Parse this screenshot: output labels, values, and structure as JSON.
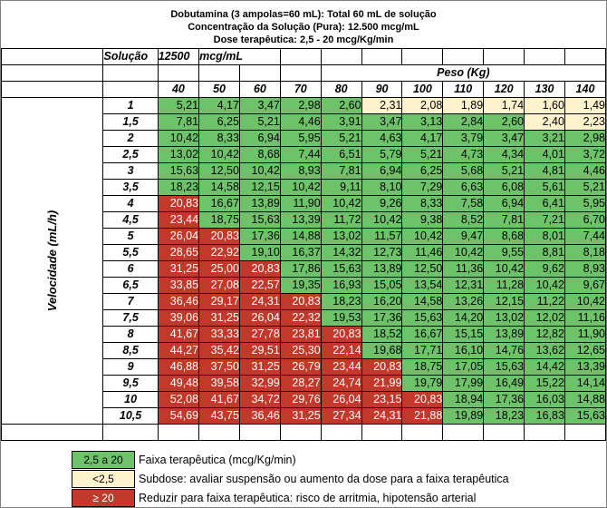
{
  "header": {
    "line1": "Dobutamina (3 ampolas=60 mL): Total 60 mL de solução",
    "line2": "Concentração da Solução (Pura): 12.500 mcg/mL",
    "line3": "Dose terapêutica: 2,5 - 20 mcg/Kg/min"
  },
  "solution_row": {
    "label": "Solução",
    "value": "12500",
    "unit": "mcg/mL"
  },
  "weight_header": "Peso (Kg)",
  "velocity_label": "Velocidade (mL/h)",
  "weights": [
    "40",
    "50",
    "60",
    "70",
    "80",
    "90",
    "100",
    "110",
    "120",
    "130",
    "140"
  ],
  "colors": {
    "therapeutic": "#6ec36a",
    "subdose": "#fff2cc",
    "reduce": "#c0392b"
  },
  "rows": [
    {
      "vel": "1",
      "values": [
        "5,21",
        "4,17",
        "3,47",
        "2,98",
        "2,60",
        "2,31",
        "2,08",
        "1,89",
        "1,74",
        "1,60",
        "1,49"
      ],
      "status": [
        "g",
        "g",
        "g",
        "g",
        "g",
        "y",
        "y",
        "y",
        "y",
        "y",
        "y"
      ]
    },
    {
      "vel": "1,5",
      "values": [
        "7,81",
        "6,25",
        "5,21",
        "4,46",
        "3,91",
        "3,47",
        "3,13",
        "2,84",
        "2,60",
        "2,40",
        "2,23"
      ],
      "status": [
        "g",
        "g",
        "g",
        "g",
        "g",
        "g",
        "g",
        "g",
        "g",
        "y",
        "y"
      ]
    },
    {
      "vel": "2",
      "values": [
        "10,42",
        "8,33",
        "6,94",
        "5,95",
        "5,21",
        "4,63",
        "4,17",
        "3,79",
        "3,47",
        "3,21",
        "2,98"
      ],
      "status": [
        "g",
        "g",
        "g",
        "g",
        "g",
        "g",
        "g",
        "g",
        "g",
        "g",
        "g"
      ]
    },
    {
      "vel": "2,5",
      "values": [
        "13,02",
        "10,42",
        "8,68",
        "7,44",
        "6,51",
        "5,79",
        "5,21",
        "4,73",
        "4,34",
        "4,01",
        "3,72"
      ],
      "status": [
        "g",
        "g",
        "g",
        "g",
        "g",
        "g",
        "g",
        "g",
        "g",
        "g",
        "g"
      ]
    },
    {
      "vel": "3",
      "values": [
        "15,63",
        "12,50",
        "10,42",
        "8,93",
        "7,81",
        "6,94",
        "6,25",
        "5,68",
        "5,21",
        "4,81",
        "4,46"
      ],
      "status": [
        "g",
        "g",
        "g",
        "g",
        "g",
        "g",
        "g",
        "g",
        "g",
        "g",
        "g"
      ]
    },
    {
      "vel": "3,5",
      "values": [
        "18,23",
        "14,58",
        "12,15",
        "10,42",
        "9,11",
        "8,10",
        "7,29",
        "6,63",
        "6,08",
        "5,61",
        "5,21"
      ],
      "status": [
        "g",
        "g",
        "g",
        "g",
        "g",
        "g",
        "g",
        "g",
        "g",
        "g",
        "g"
      ]
    },
    {
      "vel": "4",
      "values": [
        "20,83",
        "16,67",
        "13,89",
        "11,90",
        "10,42",
        "9,26",
        "8,33",
        "7,58",
        "6,94",
        "6,41",
        "5,95"
      ],
      "status": [
        "r",
        "g",
        "g",
        "g",
        "g",
        "g",
        "g",
        "g",
        "g",
        "g",
        "g"
      ]
    },
    {
      "vel": "4,5",
      "values": [
        "23,44",
        "18,75",
        "15,63",
        "13,39",
        "11,72",
        "10,42",
        "9,38",
        "8,52",
        "7,81",
        "7,21",
        "6,70"
      ],
      "status": [
        "r",
        "g",
        "g",
        "g",
        "g",
        "g",
        "g",
        "g",
        "g",
        "g",
        "g"
      ]
    },
    {
      "vel": "5",
      "values": [
        "26,04",
        "20,83",
        "17,36",
        "14,88",
        "13,02",
        "11,57",
        "10,42",
        "9,47",
        "8,68",
        "8,01",
        "7,44"
      ],
      "status": [
        "r",
        "r",
        "g",
        "g",
        "g",
        "g",
        "g",
        "g",
        "g",
        "g",
        "g"
      ]
    },
    {
      "vel": "5,5",
      "values": [
        "28,65",
        "22,92",
        "19,10",
        "16,37",
        "14,32",
        "12,73",
        "11,46",
        "10,42",
        "9,55",
        "8,81",
        "8,18"
      ],
      "status": [
        "r",
        "r",
        "g",
        "g",
        "g",
        "g",
        "g",
        "g",
        "g",
        "g",
        "g"
      ]
    },
    {
      "vel": "6",
      "values": [
        "31,25",
        "25,00",
        "20,83",
        "17,86",
        "15,63",
        "13,89",
        "12,50",
        "11,36",
        "10,42",
        "9,62",
        "8,93"
      ],
      "status": [
        "r",
        "r",
        "r",
        "g",
        "g",
        "g",
        "g",
        "g",
        "g",
        "g",
        "g"
      ]
    },
    {
      "vel": "6,5",
      "values": [
        "33,85",
        "27,08",
        "22,57",
        "19,35",
        "16,93",
        "15,05",
        "13,54",
        "12,31",
        "11,28",
        "10,42",
        "9,67"
      ],
      "status": [
        "r",
        "r",
        "r",
        "g",
        "g",
        "g",
        "g",
        "g",
        "g",
        "g",
        "g"
      ]
    },
    {
      "vel": "7",
      "values": [
        "36,46",
        "29,17",
        "24,31",
        "20,83",
        "18,23",
        "16,20",
        "14,58",
        "13,26",
        "12,15",
        "11,22",
        "10,42"
      ],
      "status": [
        "r",
        "r",
        "r",
        "r",
        "g",
        "g",
        "g",
        "g",
        "g",
        "g",
        "g"
      ]
    },
    {
      "vel": "7,5",
      "values": [
        "39,06",
        "31,25",
        "26,04",
        "22,32",
        "19,53",
        "17,36",
        "15,63",
        "14,20",
        "13,02",
        "12,02",
        "11,16"
      ],
      "status": [
        "r",
        "r",
        "r",
        "r",
        "g",
        "g",
        "g",
        "g",
        "g",
        "g",
        "g"
      ]
    },
    {
      "vel": "8",
      "values": [
        "41,67",
        "33,33",
        "27,78",
        "23,81",
        "20,83",
        "18,52",
        "16,67",
        "15,15",
        "13,89",
        "12,82",
        "11,90"
      ],
      "status": [
        "r",
        "r",
        "r",
        "r",
        "r",
        "g",
        "g",
        "g",
        "g",
        "g",
        "g"
      ]
    },
    {
      "vel": "8,5",
      "values": [
        "44,27",
        "35,42",
        "29,51",
        "25,30",
        "22,14",
        "19,68",
        "17,71",
        "16,10",
        "14,76",
        "13,62",
        "12,65"
      ],
      "status": [
        "r",
        "r",
        "r",
        "r",
        "r",
        "g",
        "g",
        "g",
        "g",
        "g",
        "g"
      ]
    },
    {
      "vel": "9",
      "values": [
        "46,88",
        "37,50",
        "31,25",
        "26,79",
        "23,44",
        "20,83",
        "18,75",
        "17,05",
        "15,63",
        "14,42",
        "13,39"
      ],
      "status": [
        "r",
        "r",
        "r",
        "r",
        "r",
        "r",
        "g",
        "g",
        "g",
        "g",
        "g"
      ]
    },
    {
      "vel": "9,5",
      "values": [
        "49,48",
        "39,58",
        "32,99",
        "28,27",
        "24,74",
        "21,99",
        "19,79",
        "17,99",
        "16,49",
        "15,22",
        "14,14"
      ],
      "status": [
        "r",
        "r",
        "r",
        "r",
        "r",
        "r",
        "g",
        "g",
        "g",
        "g",
        "g"
      ]
    },
    {
      "vel": "10",
      "values": [
        "52,08",
        "41,67",
        "34,72",
        "29,76",
        "26,04",
        "23,15",
        "20,83",
        "18,94",
        "17,36",
        "16,03",
        "14,88"
      ],
      "status": [
        "r",
        "r",
        "r",
        "r",
        "r",
        "r",
        "r",
        "g",
        "g",
        "g",
        "g"
      ]
    },
    {
      "vel": "10,5",
      "values": [
        "54,69",
        "43,75",
        "36,46",
        "31,25",
        "27,34",
        "24,31",
        "21,88",
        "19,89",
        "18,23",
        "16,83",
        "15,63"
      ],
      "status": [
        "r",
        "r",
        "r",
        "r",
        "r",
        "r",
        "r",
        "g",
        "g",
        "g",
        "g"
      ]
    }
  ],
  "legend": [
    {
      "key": "2,5 a 20",
      "text": "Faixa terapêutica (mcg/Kg/min)",
      "status": "g"
    },
    {
      "key": "<2,5",
      "text": "Subdose: avaliar suspensão ou aumento da dose para a faixa terapêutica",
      "status": "y"
    },
    {
      "key": "≥ 20",
      "text": "Reduzir para faixa terapêutica: risco de arritmia, hipotensão arterial",
      "status": "r"
    }
  ]
}
